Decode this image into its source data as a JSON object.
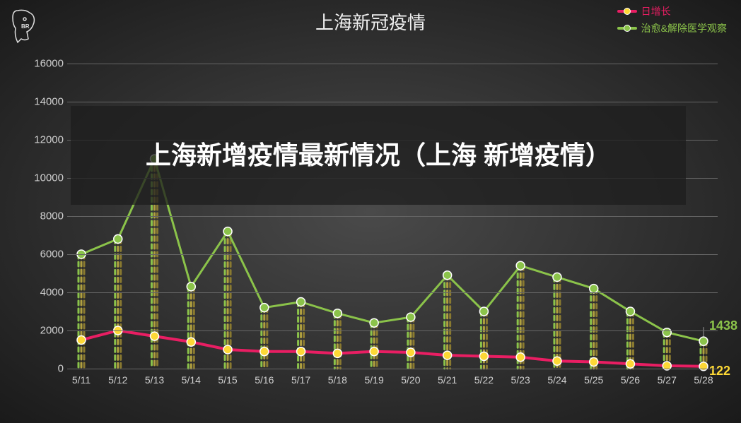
{
  "title": "上海新冠疫情",
  "overlay_text": "上海新增疫情最新情况（上海 新增疫情）",
  "logo_text": "BR",
  "legend": {
    "series1": {
      "label": "日增长",
      "line_color": "#e91e63",
      "dot_color": "#fdd835"
    },
    "series2": {
      "label": "治愈&解除医学观察",
      "line_color": "#8bc34a",
      "dot_color": "#8bc34a"
    }
  },
  "chart": {
    "type": "line",
    "y_min": 0,
    "y_max": 16000,
    "y_tick_step": 2000,
    "y_ticks": [
      "0",
      "2000",
      "4000",
      "6000",
      "8000",
      "10000",
      "12000",
      "14000",
      "16000"
    ],
    "x_labels": [
      "5/11",
      "5/12",
      "5/13",
      "5/14",
      "5/15",
      "5/16",
      "5/17",
      "5/18",
      "5/19",
      "5/20",
      "5/21",
      "5/22",
      "5/23",
      "5/24",
      "5/25",
      "5/26",
      "5/27",
      "5/28"
    ],
    "series1_values": [
      1500,
      2000,
      1700,
      1400,
      1000,
      900,
      900,
      800,
      900,
      850,
      700,
      650,
      600,
      400,
      350,
      250,
      150,
      122
    ],
    "series2_values": [
      6000,
      6800,
      11000,
      4300,
      7200,
      3200,
      3500,
      2900,
      2400,
      2700,
      4900,
      3000,
      5400,
      4800,
      4200,
      3000,
      1900,
      1438
    ],
    "drop_line_colors": [
      "#8bc34a",
      "#b0a040",
      "#8a7a30"
    ],
    "drop_line_dash": "6,5",
    "drop_line_width": 3,
    "line_width_s1": 4,
    "line_width_s2": 3,
    "marker_radius": 6,
    "marker_border": "#ffffff",
    "grid_color": "#666666",
    "axis_text_color": "#d0d0d0",
    "title_fontsize": 26,
    "label_fontsize": 15,
    "end_label_s1": "122",
    "end_label_s2": "1438",
    "end_label_s1_color": "#fdd835",
    "end_label_s2_color": "#8bc34a"
  }
}
